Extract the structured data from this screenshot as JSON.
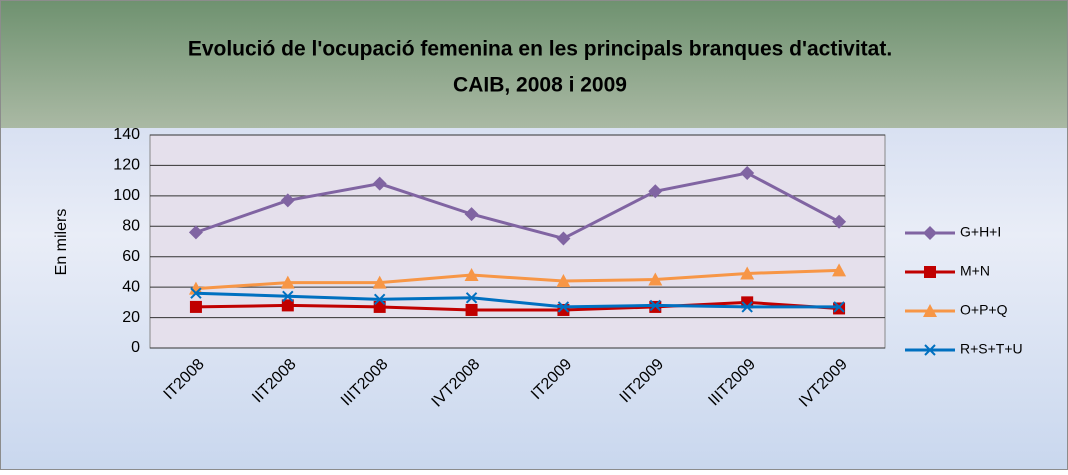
{
  "chart_data": {
    "type": "line",
    "title": [
      "Evolució de l'ocupació femenina en les principals branques d'activitat.",
      "CAIB, 2008 i 2009"
    ],
    "y_label": "En milers",
    "categories": [
      "IT2008",
      "IIT2008",
      "IIIT2008",
      "IVT2008",
      "IT2009",
      "IIT2009",
      "IIIT2009",
      "IVT2009"
    ],
    "series": [
      {
        "name": "G+H+I",
        "color": "#8064a2",
        "marker": "diamond",
        "values": [
          76,
          97,
          108,
          88,
          72,
          103,
          115,
          83
        ]
      },
      {
        "name": "M+N",
        "color": "#c00000",
        "marker": "square",
        "values": [
          27,
          28,
          27,
          25,
          25,
          27,
          30,
          26
        ]
      },
      {
        "name": "O+P+Q",
        "color": "#f79646",
        "marker": "triangle",
        "values": [
          39,
          43,
          43,
          48,
          44,
          45,
          49,
          51
        ]
      },
      {
        "name": "R+S+T+U",
        "color": "#0070c0",
        "marker": "x",
        "values": [
          36,
          34,
          32,
          33,
          27,
          28,
          27,
          27
        ]
      }
    ],
    "ylim": [
      0,
      140
    ],
    "yticks": [
      0,
      20,
      40,
      60,
      80,
      100,
      120,
      140
    ],
    "grid": true,
    "legend": "right"
  }
}
